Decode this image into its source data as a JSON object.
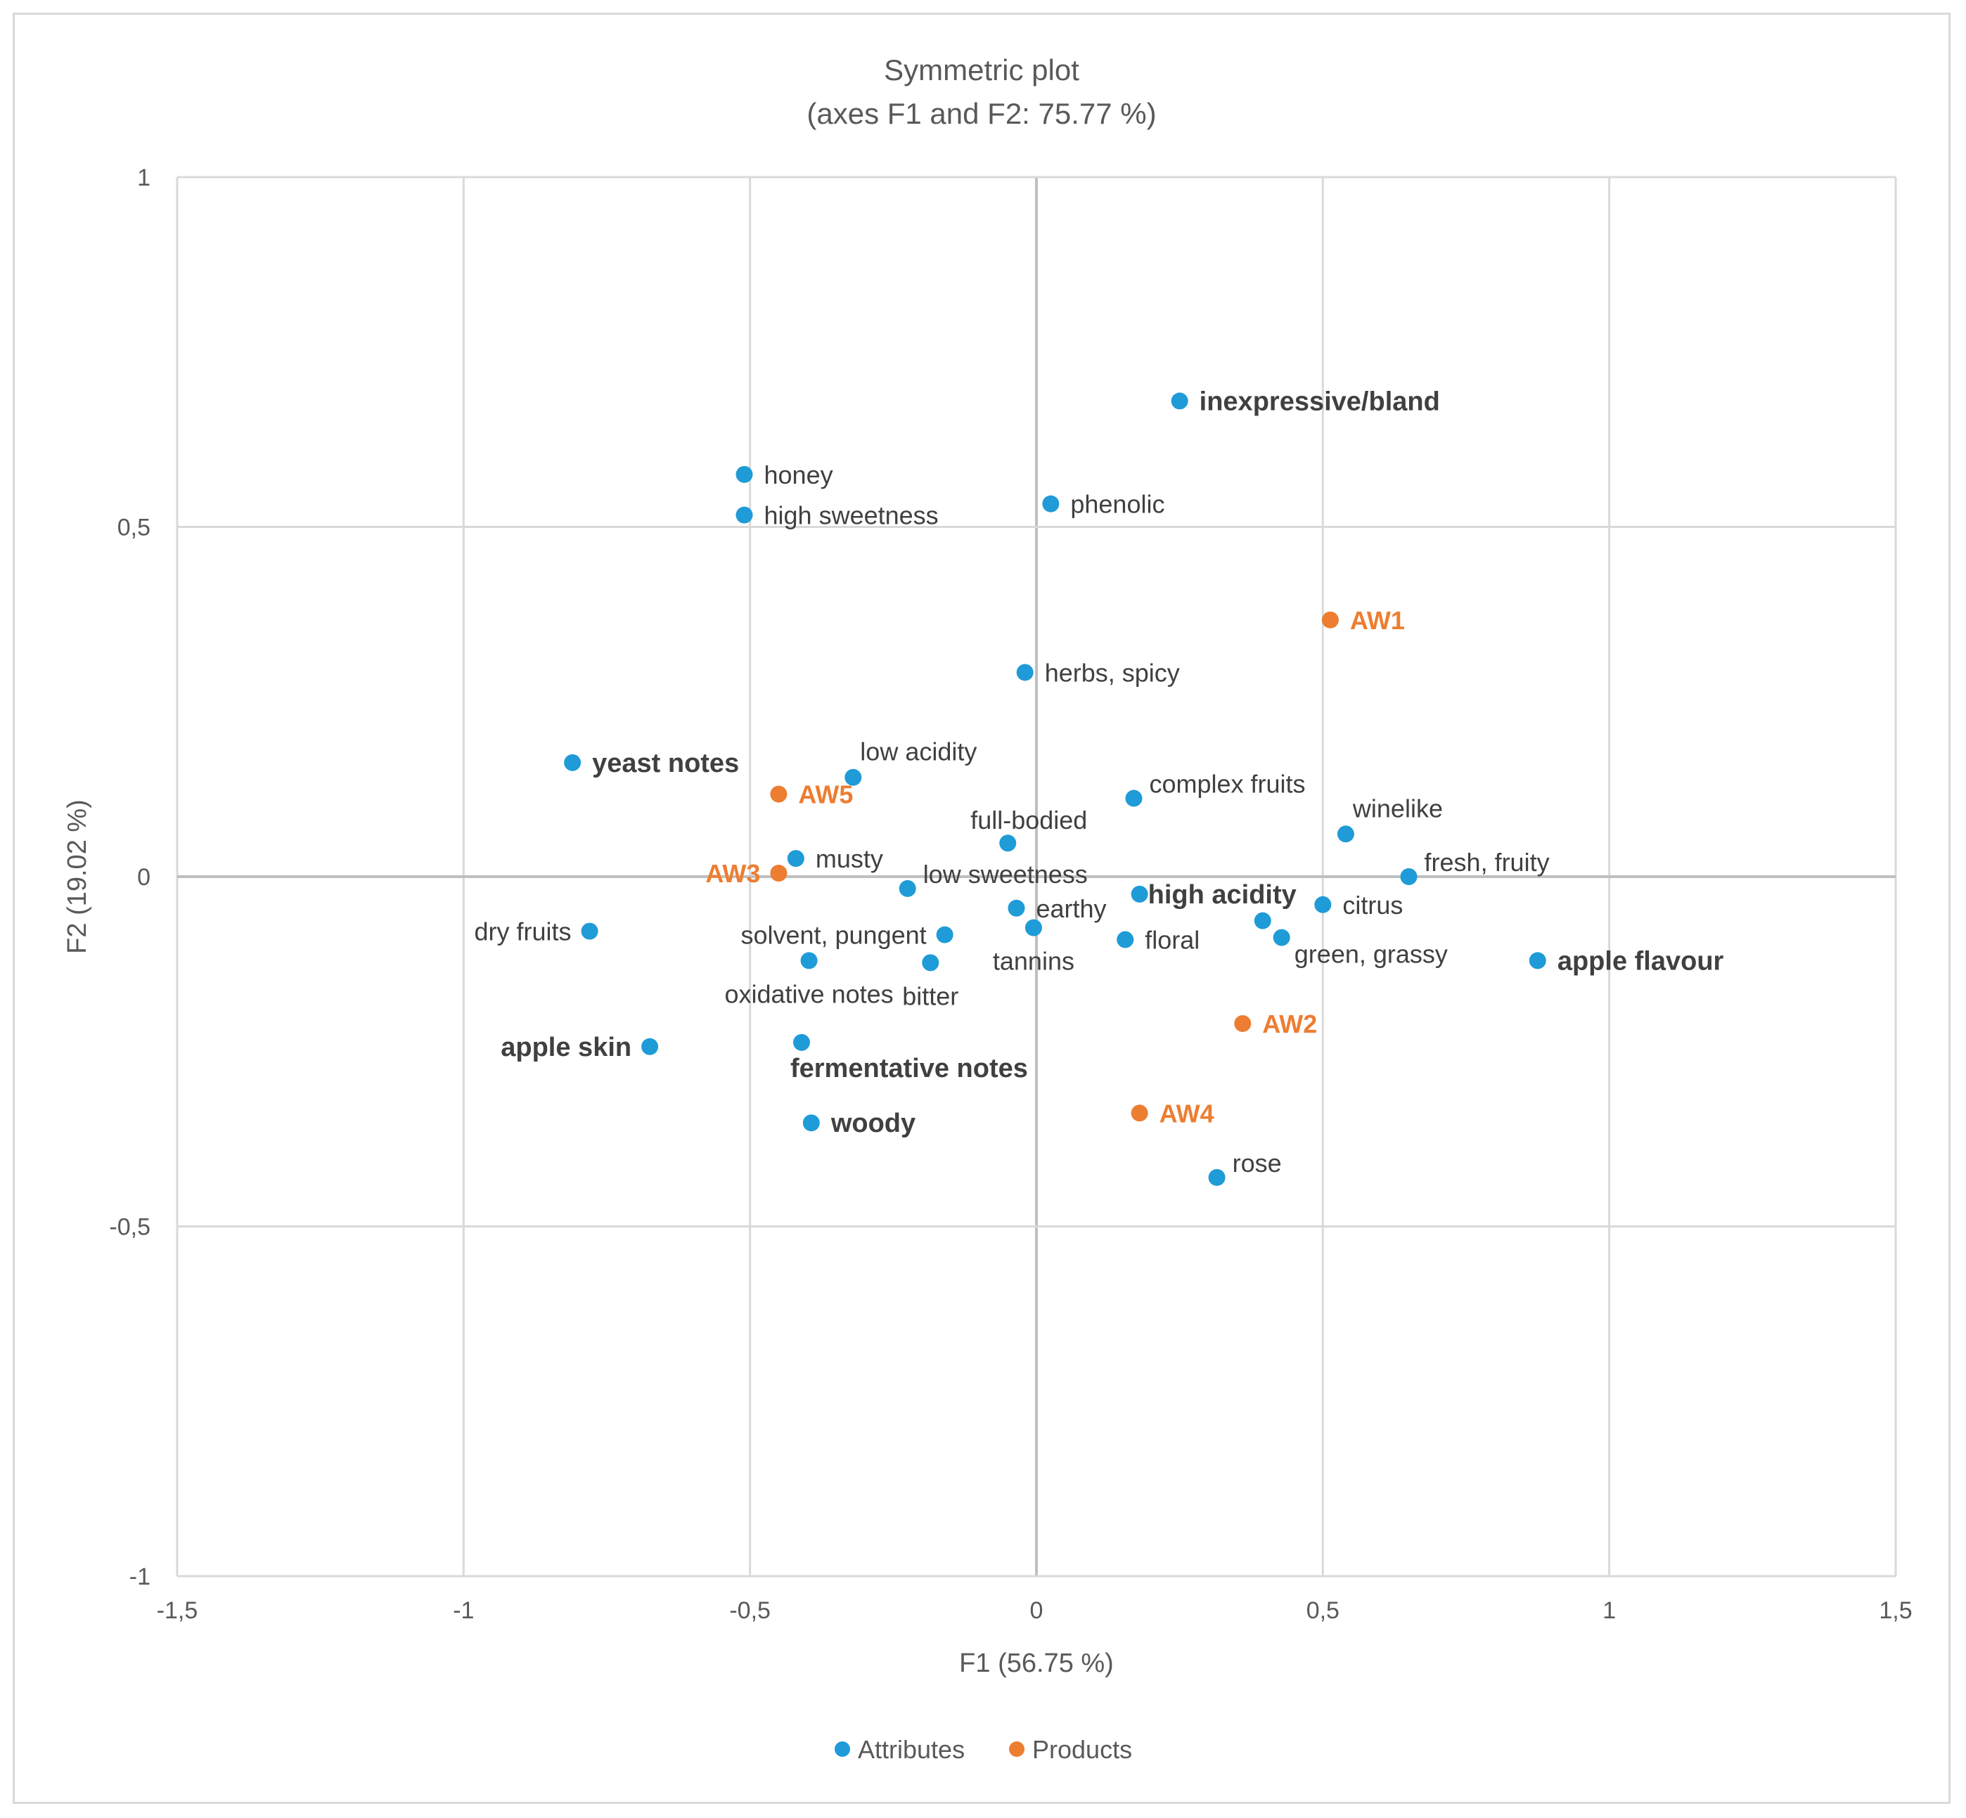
{
  "chart_data": {
    "type": "scatter",
    "title": "Symmetric plot",
    "subtitle": "(axes F1 and F2: 75.77 %)",
    "xlabel": "F1 (56.75 %)",
    "ylabel": "F2 (19.02 %)",
    "xlim": [
      -1.5,
      1.5
    ],
    "ylim": [
      -1,
      1
    ],
    "xticks": [
      -1.5,
      -1,
      -0.5,
      0,
      0.5,
      1,
      1.5
    ],
    "xtick_labels": [
      "-1,5",
      "-1",
      "-0,5",
      "0",
      "0,5",
      "1",
      "1,5"
    ],
    "yticks": [
      -1,
      -0.5,
      0,
      0.5,
      1
    ],
    "ytick_labels": [
      "-1",
      "-0,5",
      "0",
      "0,5",
      "1"
    ],
    "grid": true,
    "legend_position": "bottom",
    "colors": {
      "Attributes": "#1F9BD7",
      "Products": "#ED7D31"
    },
    "series": [
      {
        "name": "Attributes",
        "points": [
          {
            "label": "inexpressive/bland",
            "x": 0.25,
            "y": 0.68,
            "bold": true,
            "anchor": "right"
          },
          {
            "label": "honey",
            "x": -0.51,
            "y": 0.575,
            "bold": false,
            "anchor": "right"
          },
          {
            "label": "high sweetness",
            "x": -0.51,
            "y": 0.517,
            "bold": false,
            "anchor": "right"
          },
          {
            "label": "phenolic",
            "x": 0.025,
            "y": 0.533,
            "bold": false,
            "anchor": "right"
          },
          {
            "label": "herbs, spicy",
            "x": -0.02,
            "y": 0.292,
            "bold": false,
            "anchor": "right"
          },
          {
            "label": "yeast notes",
            "x": -0.81,
            "y": 0.163,
            "bold": true,
            "anchor": "right"
          },
          {
            "label": "low acidity",
            "x": -0.32,
            "y": 0.142,
            "bold": false,
            "anchor": "above-right"
          },
          {
            "label": "complex fruits",
            "x": 0.17,
            "y": 0.112,
            "bold": false,
            "anchor": "right-up"
          },
          {
            "label": "winelike",
            "x": 0.54,
            "y": 0.061,
            "bold": false,
            "anchor": "above-right"
          },
          {
            "label": "full-bodied",
            "x": -0.05,
            "y": 0.048,
            "bold": false,
            "anchor": "above"
          },
          {
            "label": "fresh, fruity",
            "x": 0.65,
            "y": 0.0,
            "bold": false,
            "anchor": "right-up"
          },
          {
            "label": "musty",
            "x": -0.42,
            "y": 0.026,
            "bold": false,
            "anchor": "right"
          },
          {
            "label": "low sweetness",
            "x": -0.225,
            "y": -0.017,
            "bold": false,
            "anchor": "right-up"
          },
          {
            "label": "earthy",
            "x": -0.035,
            "y": -0.045,
            "bold": false,
            "anchor": "right"
          },
          {
            "label": "high acidity",
            "x": 0.18,
            "y": -0.025,
            "bold": true,
            "anchor": "center"
          },
          {
            "label": "citrus",
            "x": 0.5,
            "y": -0.04,
            "bold": false,
            "anchor": "right"
          },
          {
            "label": "dry fruits",
            "x": -0.78,
            "y": -0.078,
            "bold": false,
            "anchor": "left"
          },
          {
            "label": "solvent, pungent",
            "x": -0.16,
            "y": -0.083,
            "bold": false,
            "anchor": "left"
          },
          {
            "label": "tannins",
            "x": -0.005,
            "y": -0.073,
            "bold": false,
            "anchor": "below"
          },
          {
            "label": "floral",
            "x": 0.155,
            "y": -0.09,
            "bold": false,
            "anchor": "right"
          },
          {
            "label": "green, grassy",
            "x": 0.395,
            "y": -0.063,
            "bold": false,
            "anchor": "none"
          },
          {
            "label": "",
            "x": 0.428,
            "y": -0.087,
            "bold": false,
            "anchor": "none"
          },
          {
            "label": "apple flavour",
            "x": 0.875,
            "y": -0.12,
            "bold": true,
            "anchor": "right"
          },
          {
            "label": "oxidative notes",
            "x": -0.397,
            "y": -0.12,
            "bold": false,
            "anchor": "below"
          },
          {
            "label": "bitter",
            "x": -0.185,
            "y": -0.123,
            "bold": false,
            "anchor": "below"
          },
          {
            "label": "apple skin",
            "x": -0.675,
            "y": -0.243,
            "bold": true,
            "anchor": "left"
          },
          {
            "label": "fermentative notes",
            "x": -0.41,
            "y": -0.237,
            "bold": true,
            "anchor": "below-right"
          },
          {
            "label": "woody",
            "x": -0.393,
            "y": -0.352,
            "bold": true,
            "anchor": "right"
          },
          {
            "label": "rose",
            "x": 0.315,
            "y": -0.43,
            "bold": false,
            "anchor": "right-up"
          }
        ]
      },
      {
        "name": "Products",
        "points": [
          {
            "label": "AW1",
            "x": 0.513,
            "y": 0.367,
            "anchor": "right"
          },
          {
            "label": "AW5",
            "x": -0.45,
            "y": 0.118,
            "anchor": "right"
          },
          {
            "label": "AW3",
            "x": -0.45,
            "y": 0.005,
            "anchor": "left"
          },
          {
            "label": "AW2",
            "x": 0.36,
            "y": -0.21,
            "anchor": "right"
          },
          {
            "label": "AW4",
            "x": 0.18,
            "y": -0.338,
            "anchor": "right"
          }
        ]
      }
    ]
  }
}
